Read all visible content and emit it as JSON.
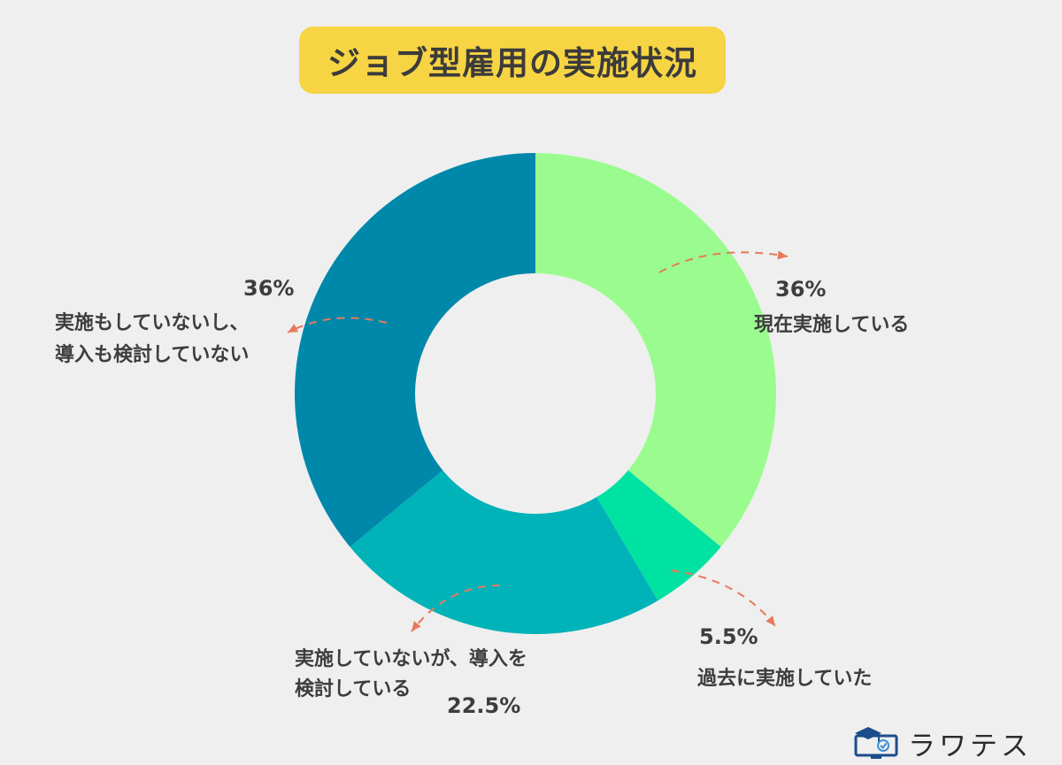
{
  "chart_data": {
    "type": "pie",
    "variant": "donut",
    "title": "ジョブ型雇用の実施状況",
    "slices": [
      {
        "pct_label": "36%",
        "value": 36,
        "label_lines": [
          "現在実施している"
        ],
        "color": "#9afc8e"
      },
      {
        "pct_label": "5.5%",
        "value": 5.5,
        "label_lines": [
          "過去に実施していた"
        ],
        "color": "#00e2a2"
      },
      {
        "pct_label": "22.5%",
        "value": 22.5,
        "label_lines": [
          "実施していないが、導入を",
          "検討している"
        ],
        "color": "#00b3b8"
      },
      {
        "pct_label": "36%",
        "value": 36,
        "label_lines": [
          "実施もしていないし、",
          "導入も検討していない"
        ],
        "color": "#0088aa"
      }
    ],
    "label_color": "#3d3d3d",
    "arrow_color": "#e77a5d",
    "start_angle": "12 o'clock",
    "direction": "clockwise"
  },
  "colors": {
    "background": "#efefef",
    "title_bg": "#f7d443"
  },
  "logo": {
    "text": "ラワテス",
    "icon": "monitor-graduation-cap-icon"
  }
}
